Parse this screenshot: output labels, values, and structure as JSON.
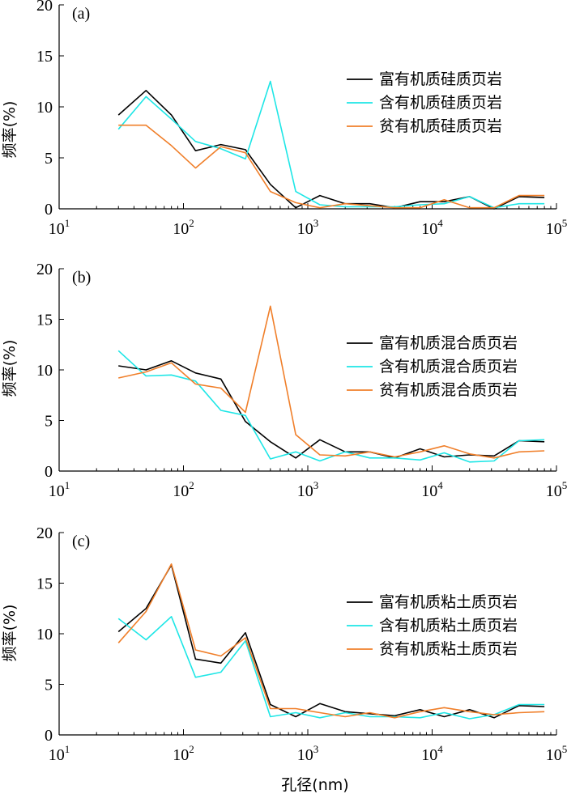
{
  "figure": {
    "x_axis_label": "孔径(nm)",
    "y_axis_label": "频率(%)"
  },
  "chart_data": [
    {
      "type": "line",
      "panel_label": "(a)",
      "x_scale": "log",
      "xlim": [
        10,
        100000
      ],
      "ylim": [
        0,
        20
      ],
      "y_ticks": [
        0,
        5,
        10,
        15,
        20
      ],
      "x_ticks": [
        {
          "base": "10",
          "exp": "1"
        },
        {
          "base": "10",
          "exp": "2"
        },
        {
          "base": "10",
          "exp": "3"
        },
        {
          "base": "10",
          "exp": "4"
        },
        {
          "base": "10",
          "exp": "5"
        }
      ],
      "legend_position": "right",
      "x": [
        30,
        50,
        80,
        125,
        200,
        315,
        500,
        800,
        1250,
        2000,
        3150,
        5000,
        8000,
        12500,
        20000,
        31500,
        50000,
        80000
      ],
      "series": [
        {
          "name": "富有机质硅质页岩",
          "color": "#000000",
          "values": [
            9.2,
            11.6,
            9.2,
            5.7,
            6.3,
            5.8,
            2.4,
            0.1,
            1.3,
            0.5,
            0.5,
            0.1,
            0.7,
            0.7,
            1.2,
            0.0,
            1.2,
            1.1
          ]
        },
        {
          "name": "含有机质硅质页岩",
          "color": "#1ee6e6",
          "values": [
            7.8,
            11.0,
            8.8,
            6.6,
            5.9,
            4.9,
            12.5,
            1.7,
            0.4,
            0.2,
            0.2,
            0.2,
            0.4,
            0.5,
            1.2,
            0.1,
            0.5,
            0.5
          ]
        },
        {
          "name": "贫有机质硅质页岩",
          "color": "#f07f2a",
          "values": [
            8.2,
            8.2,
            6.2,
            4.0,
            6.1,
            5.5,
            1.7,
            0.6,
            0.1,
            0.5,
            0.3,
            0.1,
            0.1,
            0.9,
            0.1,
            0.1,
            1.3,
            1.3
          ]
        }
      ]
    },
    {
      "type": "line",
      "panel_label": "(b)",
      "x_scale": "log",
      "xlim": [
        10,
        100000
      ],
      "ylim": [
        0,
        20
      ],
      "y_ticks": [
        0,
        5,
        10,
        15,
        20
      ],
      "x_ticks": [
        {
          "base": "10",
          "exp": "1"
        },
        {
          "base": "10",
          "exp": "2"
        },
        {
          "base": "10",
          "exp": "3"
        },
        {
          "base": "10",
          "exp": "4"
        },
        {
          "base": "10",
          "exp": "5"
        }
      ],
      "legend_position": "right",
      "x": [
        30,
        50,
        80,
        125,
        200,
        315,
        500,
        800,
        1250,
        2000,
        3150,
        5000,
        8000,
        12500,
        20000,
        31500,
        50000,
        80000
      ],
      "series": [
        {
          "name": "富有机质混合质页岩",
          "color": "#000000",
          "values": [
            10.4,
            10.0,
            10.9,
            9.7,
            9.1,
            4.9,
            2.9,
            1.3,
            3.1,
            1.9,
            1.9,
            1.3,
            2.2,
            1.4,
            1.6,
            1.5,
            3.0,
            2.9
          ]
        },
        {
          "name": "含有机质混合质页岩",
          "color": "#1ee6e6",
          "values": [
            11.9,
            9.4,
            9.5,
            8.9,
            6.0,
            5.5,
            1.2,
            1.9,
            1.0,
            1.9,
            1.3,
            1.3,
            1.1,
            1.8,
            0.9,
            1.0,
            3.0,
            3.1
          ]
        },
        {
          "name": "贫有机质混合质页岩",
          "color": "#f07f2a",
          "values": [
            9.2,
            9.8,
            10.7,
            8.6,
            8.2,
            5.8,
            16.3,
            3.6,
            1.6,
            1.5,
            1.9,
            1.4,
            1.9,
            2.5,
            1.7,
            1.3,
            1.9,
            2.0
          ]
        }
      ]
    },
    {
      "type": "line",
      "panel_label": "(c)",
      "x_scale": "log",
      "xlim": [
        10,
        100000
      ],
      "ylim": [
        0,
        20
      ],
      "y_ticks": [
        0,
        5,
        10,
        15,
        20
      ],
      "x_ticks": [
        {
          "base": "10",
          "exp": "1"
        },
        {
          "base": "10",
          "exp": "2"
        },
        {
          "base": "10",
          "exp": "3"
        },
        {
          "base": "10",
          "exp": "4"
        },
        {
          "base": "10",
          "exp": "5"
        }
      ],
      "legend_position": "right",
      "x": [
        30,
        50,
        80,
        125,
        200,
        315,
        500,
        800,
        1250,
        2000,
        3150,
        5000,
        8000,
        12500,
        20000,
        31500,
        50000,
        80000
      ],
      "series": [
        {
          "name": "富有机质粘土质页岩",
          "color": "#000000",
          "values": [
            10.2,
            12.5,
            16.8,
            7.5,
            7.1,
            10.1,
            3.0,
            1.8,
            3.1,
            2.3,
            2.1,
            1.9,
            2.5,
            1.8,
            2.5,
            1.7,
            2.9,
            2.8
          ]
        },
        {
          "name": "含有机质粘土质页岩",
          "color": "#1ee6e6",
          "values": [
            11.5,
            9.4,
            11.7,
            5.7,
            6.2,
            9.3,
            1.8,
            2.2,
            1.7,
            2.2,
            1.8,
            1.8,
            1.7,
            2.2,
            1.6,
            2.0,
            3.0,
            3.0
          ]
        },
        {
          "name": "贫有机质粘土质页岩",
          "color": "#f07f2a",
          "values": [
            9.1,
            12.2,
            16.9,
            8.4,
            7.8,
            9.6,
            2.6,
            2.6,
            2.2,
            1.8,
            2.2,
            1.7,
            2.3,
            2.7,
            2.3,
            2.0,
            2.2,
            2.3
          ]
        }
      ]
    }
  ]
}
